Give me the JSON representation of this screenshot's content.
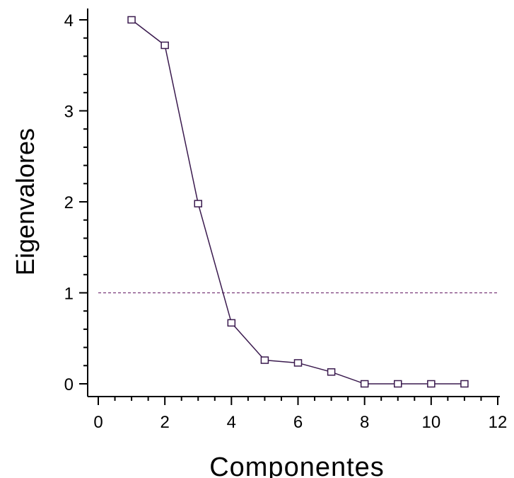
{
  "chart_data": {
    "type": "line",
    "title": "",
    "xlabel": "Componentes",
    "ylabel": "Eigenvalores",
    "xlim": [
      0,
      12
    ],
    "ylim": [
      0,
      4
    ],
    "x_ticks": [
      0,
      2,
      4,
      6,
      8,
      10,
      12
    ],
    "y_ticks": [
      0,
      1,
      2,
      3,
      4
    ],
    "x_tick_labels": [
      "0",
      "2",
      "4",
      "6",
      "8",
      "10",
      "12"
    ],
    "y_tick_labels": [
      "0",
      "1",
      "2",
      "3",
      "4"
    ],
    "grid": false,
    "legend": "none",
    "series": [
      {
        "x": [
          1,
          2,
          3,
          4,
          5,
          6,
          7,
          8,
          9,
          10,
          11
        ],
        "y": [
          4.0,
          3.72,
          1.98,
          0.67,
          0.26,
          0.23,
          0.13,
          0.0,
          0.0,
          0.0,
          0.0
        ],
        "marker": "square",
        "color": "#3a1a4e"
      }
    ],
    "reference_line": {
      "y": 1.0,
      "x_range": [
        0,
        12
      ],
      "style": "dashed",
      "color": "#7a3a7a"
    }
  }
}
